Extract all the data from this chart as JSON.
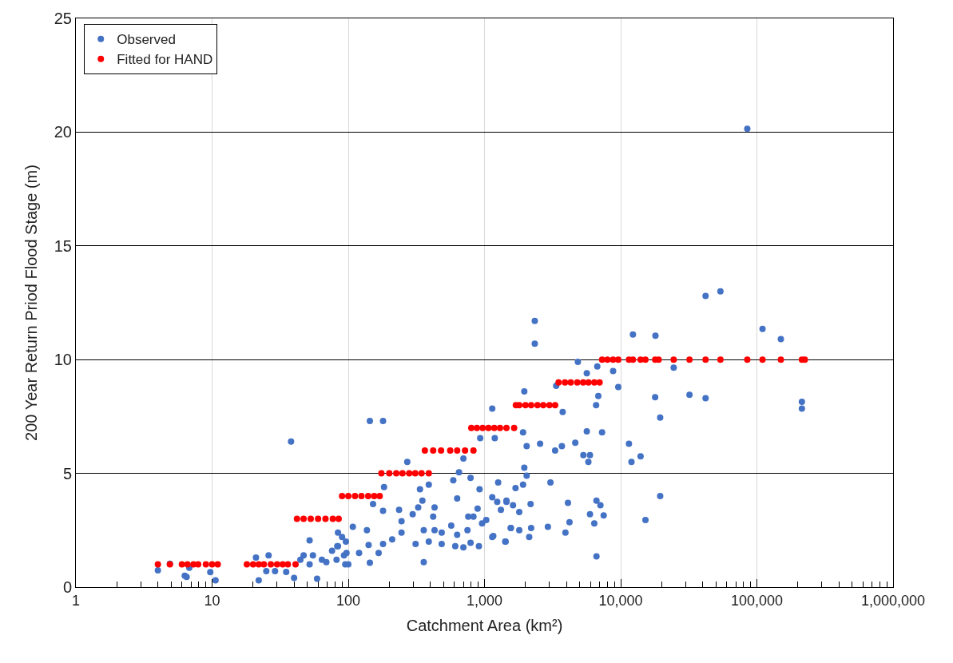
{
  "chart_data": {
    "type": "scatter",
    "xlabel": "Catchment Area (km²)",
    "ylabel": "200 Year Return Priod Flood Stage (m)",
    "log": "x",
    "grid": true,
    "legend": "top left",
    "marker": "circle",
    "xlim": [
      1,
      1000000
    ],
    "ylim": [
      0,
      25
    ],
    "xticks": [
      1,
      10,
      100,
      {
        "value": 1000,
        "label": "1,000"
      },
      {
        "value": 10000,
        "label": "10,000"
      },
      {
        "value": 100000,
        "label": "100,000"
      },
      {
        "value": 1000000,
        "label": "1,000,000"
      }
    ],
    "yticks": [
      0,
      5,
      10,
      15,
      20,
      25
    ],
    "series": [
      {
        "name": "Observed",
        "color": "#4472c4",
        "x": [
          38,
          4,
          4.9,
          6.3,
          6.5,
          6.8,
          9.7,
          10.6,
          21,
          22,
          26,
          25,
          29,
          35,
          40,
          44.5,
          47,
          52,
          52,
          55,
          59,
          64,
          69,
          76,
          83,
          84,
          82,
          90,
          96,
          108,
          93,
          95,
          144,
          180,
          84,
          100,
          97,
          120,
          137,
          141,
          144,
          152,
          167,
          180,
          180,
          183,
          210,
          236,
          246,
          246,
          271,
          297,
          312,
          326,
          336,
          350,
          358,
          358,
          390,
          390,
          430,
          420,
          430,
          485,
          485,
          570,
          590,
          650,
          630,
          630,
          610,
          700,
          700,
          750,
          790,
          760,
          830,
          890,
          790,
          920,
          930,
          960,
          910,
          1030,
          1140,
          1190,
          1140,
          1140,
          1260,
          1320,
          1420,
          1450,
          1560,
          2340,
          2340,
          12300,
          4850,
          5640,
          6730,
          8800,
          9600,
          3360,
          6850,
          6600,
          1960,
          3750,
          7300,
          5640,
          1920,
          2040,
          2560,
          3300,
          3700,
          4640,
          5320,
          5950,
          5790,
          11500,
          12000,
          14000,
          1960,
          2040,
          3050,
          1920,
          1690,
          1240,
          1450,
          1620,
          1800,
          2180,
          4100,
          4210,
          3930,
          6640,
          7100,
          7500,
          5950,
          6400,
          6640,
          2920,
          2200,
          2130,
          1800,
          1560,
          1430,
          1160,
          15200,
          85000,
          42000,
          54000,
          110000,
          150000,
          18000,
          24500,
          17900,
          32000,
          42000,
          19500,
          214000,
          214000,
          19500
        ],
        "values": [
          6.4,
          0.74,
          1.03,
          0.5,
          0.45,
          0.85,
          0.66,
          0.3,
          1.3,
          0.3,
          1.4,
          0.7,
          0.7,
          0.67,
          0.4,
          1.2,
          1.4,
          2.05,
          1.0,
          1.4,
          0.37,
          1.2,
          1.1,
          1.6,
          1.8,
          2.4,
          1.2,
          2.2,
          2.0,
          2.65,
          1.4,
          1.0,
          7.3,
          7.3,
          1.8,
          1.0,
          1.5,
          1.5,
          2.5,
          1.85,
          1.07,
          3.65,
          1.5,
          1.9,
          3.35,
          4.4,
          2.1,
          3.4,
          2.9,
          2.4,
          5.5,
          3.2,
          1.9,
          3.5,
          4.3,
          3.8,
          2.5,
          1.1,
          4.5,
          2.0,
          3.5,
          3.1,
          2.5,
          2.4,
          1.9,
          2.7,
          4.7,
          5.05,
          3.9,
          2.3,
          1.8,
          1.75,
          5.65,
          2.5,
          4.8,
          3.1,
          3.1,
          3.45,
          1.95,
          4.3,
          6.55,
          2.8,
          1.8,
          2.95,
          7.85,
          6.55,
          3.95,
          2.2,
          4.6,
          3.4,
          2.0,
          3.75,
          2.6,
          11.7,
          10.7,
          11.1,
          9.9,
          9.4,
          9.7,
          9.5,
          8.8,
          8.85,
          8.4,
          8.0,
          8.6,
          7.7,
          6.8,
          6.85,
          6.8,
          6.2,
          6.3,
          6.0,
          6.2,
          6.35,
          5.8,
          5.8,
          5.5,
          6.3,
          5.5,
          5.75,
          5.25,
          4.9,
          4.6,
          4.5,
          4.35,
          3.75,
          3.8,
          3.6,
          3.3,
          3.65,
          3.7,
          2.85,
          2.4,
          3.8,
          3.6,
          3.15,
          3.2,
          2.8,
          1.35,
          2.65,
          2.6,
          2.2,
          2.5,
          2.6,
          2.0,
          2.25,
          2.95,
          20.15,
          12.8,
          13.0,
          11.35,
          10.9,
          11.05,
          9.65,
          8.35,
          8.45,
          8.3,
          7.45,
          8.15,
          7.85,
          4.0
        ]
      },
      {
        "name": "Fitted for HAND",
        "color": "#ff0000",
        "x": [
          4,
          4.9,
          6,
          6.6,
          7.3,
          7.9,
          9,
          10,
          11,
          18,
          20,
          22,
          24,
          27,
          30,
          33,
          36,
          41,
          42,
          47,
          53,
          60,
          68,
          77,
          85,
          90,
          100,
          112,
          125,
          140,
          155,
          170,
          175,
          200,
          225,
          250,
          280,
          310,
          345,
          390,
          365,
          420,
          480,
          560,
          630,
          720,
          830,
          800,
          880,
          970,
          1070,
          1180,
          1300,
          1450,
          1650,
          1700,
          1800,
          2000,
          2200,
          2450,
          2700,
          3000,
          3300,
          3500,
          3900,
          4300,
          4800,
          5300,
          5800,
          6400,
          7000,
          7300,
          8000,
          8800,
          9600,
          11500,
          12300,
          14000,
          15200,
          17900,
          19000,
          24500,
          32000,
          42000,
          54000,
          85000,
          110000,
          150000,
          214000,
          225000
        ],
        "values": [
          1,
          1,
          1,
          1,
          1,
          1,
          1,
          1,
          1,
          1,
          1,
          1,
          1,
          1,
          1,
          1,
          1,
          1,
          3,
          3,
          3,
          3,
          3,
          3,
          3,
          4,
          4,
          4,
          4,
          4,
          4,
          4,
          5,
          5,
          5,
          5,
          5,
          5,
          5,
          5,
          6,
          6,
          6,
          6,
          6,
          6,
          6,
          7,
          7,
          7,
          7,
          7,
          7,
          7,
          7,
          8,
          8,
          8,
          8,
          8,
          8,
          8,
          8,
          9,
          9,
          9,
          9,
          9,
          9,
          9,
          9,
          10,
          10,
          10,
          10,
          10,
          10,
          10,
          10,
          10,
          10,
          10,
          10,
          10,
          10,
          10,
          10,
          10,
          10,
          10
        ]
      }
    ]
  }
}
